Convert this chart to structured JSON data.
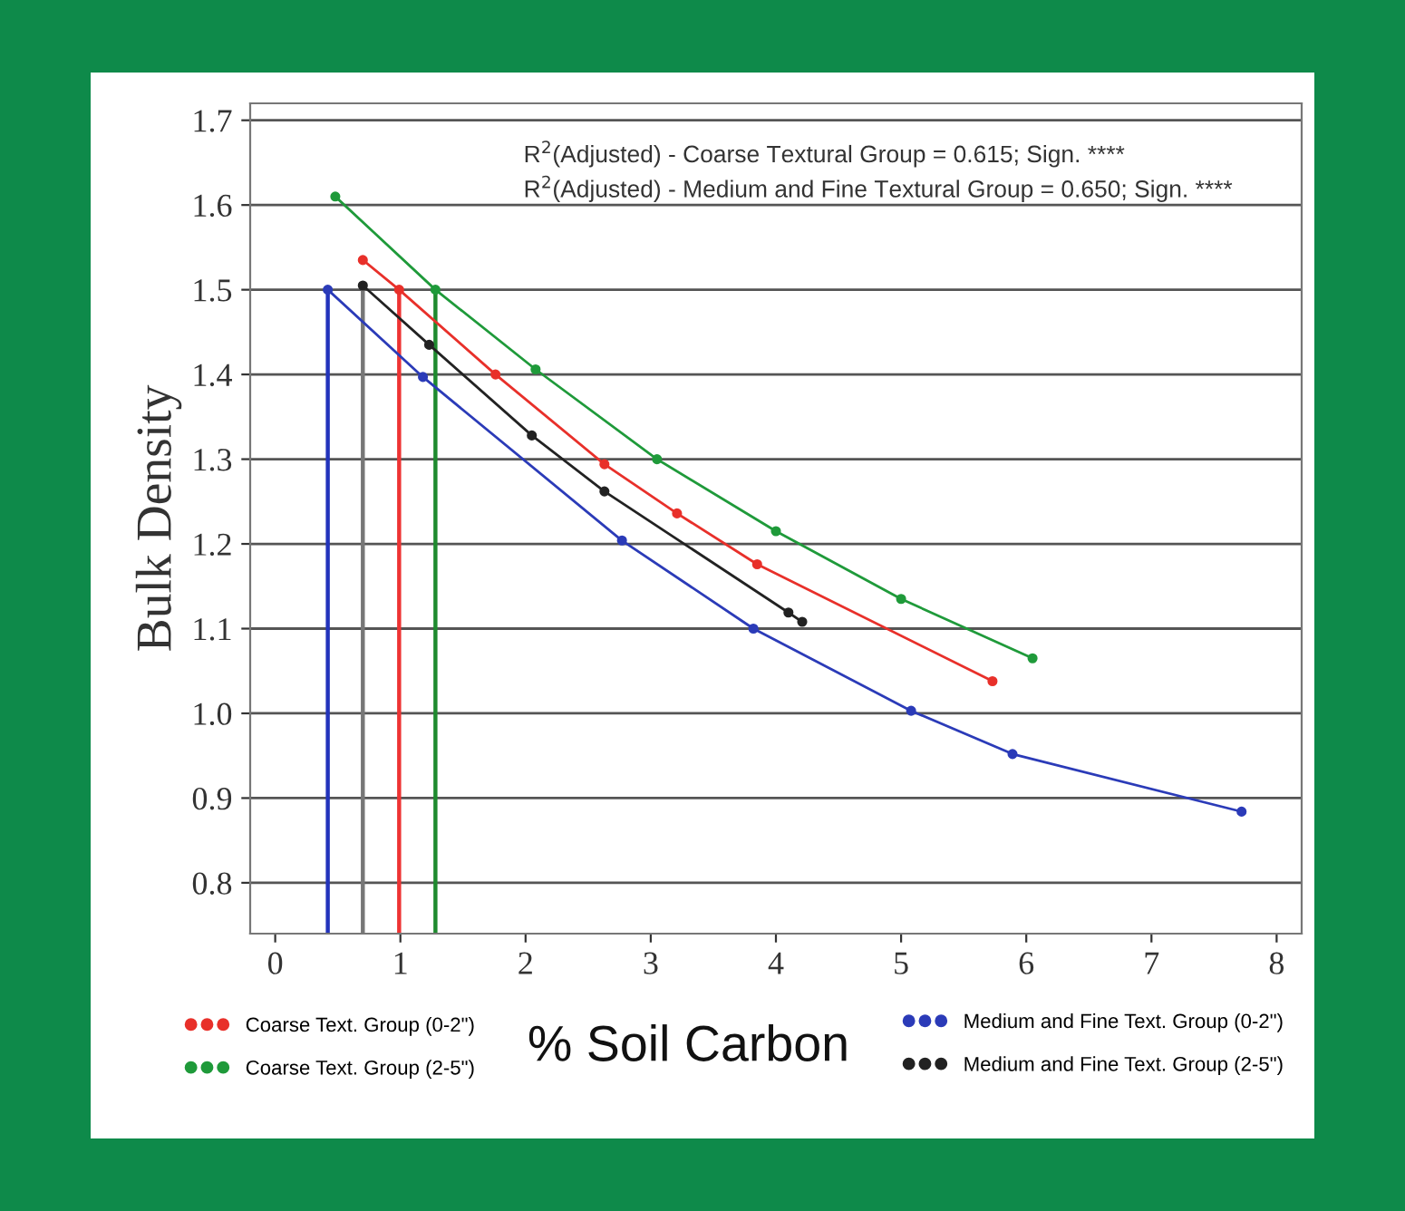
{
  "chart_data": {
    "type": "line",
    "xlabel": "% Soil Carbon",
    "ylabel": "Bulk Density",
    "xlim": [
      -0.2,
      8.2
    ],
    "xticks": [
      0,
      1,
      2,
      3,
      4,
      5,
      6,
      7,
      8
    ],
    "ylim": [
      0.74,
      1.72
    ],
    "yticks": [
      0.8,
      0.9,
      {
        "value": 1.0,
        "label": "1.0"
      },
      1.1,
      1.2,
      1.3,
      1.4,
      1.5,
      1.6,
      1.7
    ],
    "grid": "y",
    "legend": "bottom",
    "marker": "circle",
    "line_style": "solid",
    "annotations": [
      "R$^{2}$(Adjusted) - Coarse Textural Group = 0.615; Sign. ****",
      "R$^{2}$(Adjusted) - Medium and Fine Textural Group = 0.650; Sign. ****"
    ],
    "series": [
      {
        "name": "Coarse Text. Group (0-2\")",
        "color": "#e8302a",
        "x": [
          0.7,
          0.99,
          1.76,
          2.63,
          3.21,
          3.85,
          5.73
        ],
        "values": [
          1.535,
          1.5,
          1.4,
          1.294,
          1.236,
          1.176,
          1.038
        ]
      },
      {
        "name": "Coarse Text. Group (2-5\")",
        "color": "#1f9a3a",
        "x": [
          0.48,
          1.28,
          2.08,
          3.05,
          4.0,
          5.0,
          6.05
        ],
        "values": [
          1.61,
          1.5,
          1.406,
          1.3,
          1.215,
          1.135,
          1.065
        ]
      },
      {
        "name": "Medium and Fine Text. Group (0-2\")",
        "color": "#2b3bb8",
        "x": [
          0.42,
          1.18,
          2.77,
          3.82,
          5.08,
          5.89,
          7.72
        ],
        "values": [
          1.5,
          1.397,
          1.204,
          1.1,
          1.003,
          0.952,
          0.884
        ]
      },
      {
        "name": "Medium and Fine Text. Group (2-5\")",
        "color": "#222222",
        "x": [
          0.7,
          1.23,
          2.05,
          2.63,
          4.1,
          4.21
        ],
        "values": [
          1.505,
          1.435,
          1.328,
          1.262,
          1.119,
          1.108
        ]
      },
      {
        "color": "#2233bb",
        "marker": "none",
        "x": [
          0.42,
          0.42
        ],
        "values": [
          0.74,
          1.5
        ]
      },
      {
        "color": "#777777",
        "marker": "none",
        "x": [
          0.7,
          0.7
        ],
        "values": [
          0.74,
          1.505
        ]
      },
      {
        "color": "#ee3333",
        "marker": "none",
        "x": [
          0.99,
          0.99
        ],
        "values": [
          0.74,
          1.5
        ]
      },
      {
        "color": "#1e8a2e",
        "marker": "none",
        "x": [
          1.28,
          1.28
        ],
        "values": [
          0.74,
          1.5
        ]
      }
    ]
  }
}
